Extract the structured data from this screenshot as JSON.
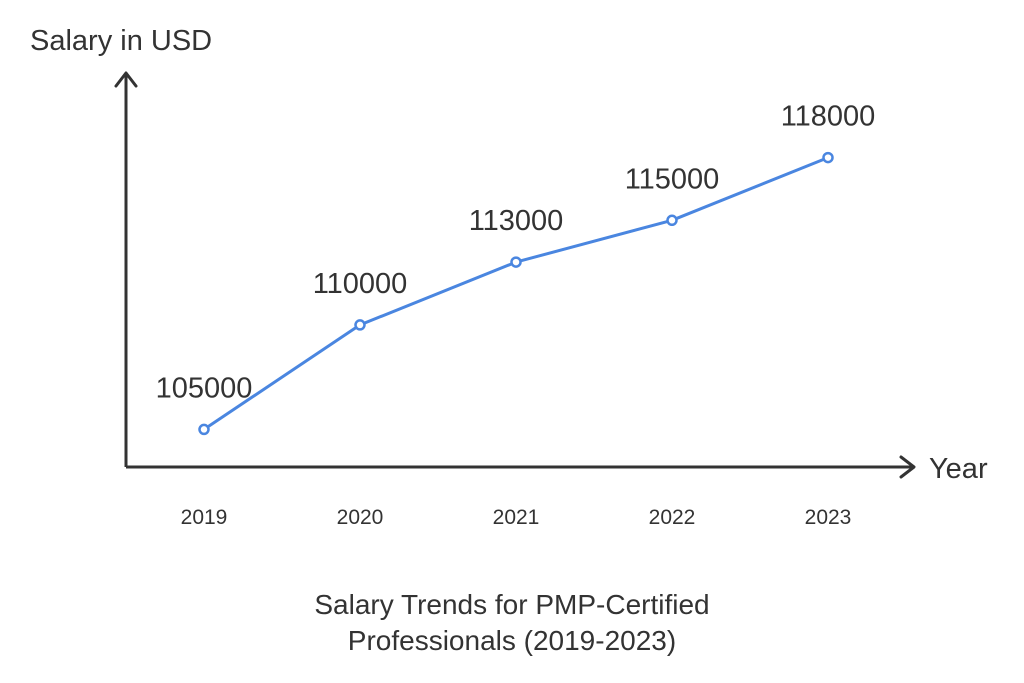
{
  "chart_data": {
    "type": "line",
    "title_lines": [
      "Salary Trends for PMP-Certified",
      "Professionals (2019-2023)"
    ],
    "xlabel": "Year",
    "ylabel": "Salary in USD",
    "categories": [
      "2019",
      "2020",
      "2021",
      "2022",
      "2023"
    ],
    "series": [
      {
        "values": [
          105000,
          110000,
          113000,
          115000,
          118000
        ]
      }
    ],
    "ylim": [
      103200,
      122000
    ],
    "grid": false,
    "legend": "none",
    "colors": {
      "line": "#4a86e0",
      "axis": "#333333",
      "text": "#333333"
    }
  }
}
